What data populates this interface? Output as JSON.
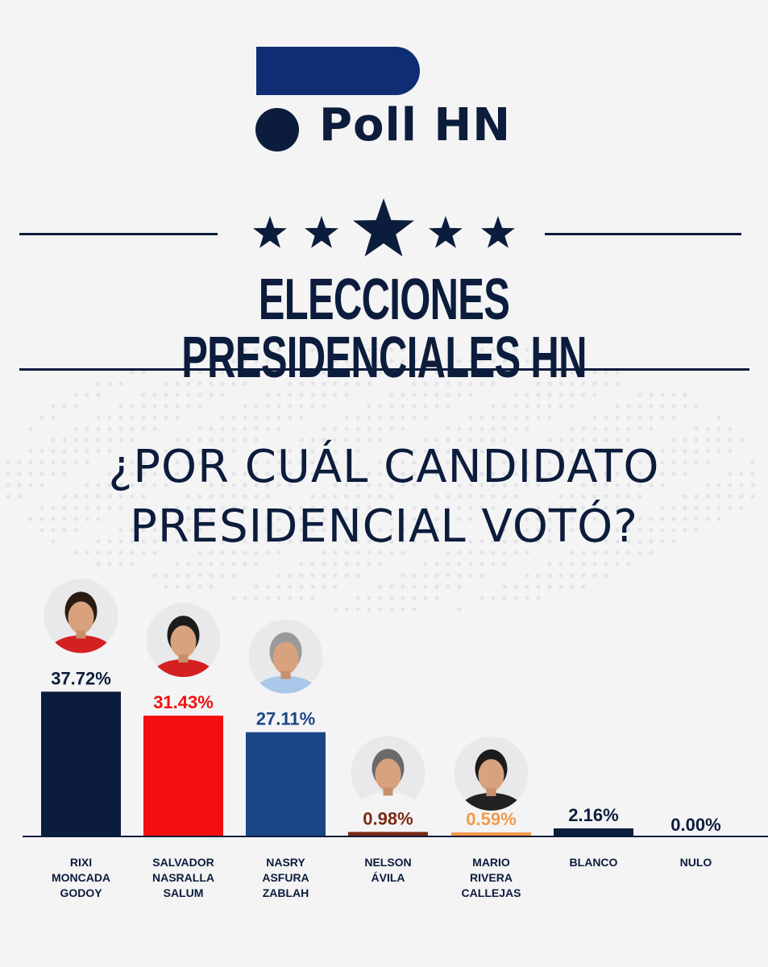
{
  "brand": {
    "name": "Poll HN",
    "primary": "#0c1c3c",
    "logo_blue": "#0f2d72"
  },
  "title": "ELECCIONES PRESIDENCIALES HN",
  "question": {
    "line1": "¿POR CUÁL CANDIDATO",
    "line2": "PRESIDENCIAL VOTÓ?"
  },
  "chart_data": {
    "type": "bar",
    "categories": [
      [
        "RIXI",
        "MONCADA",
        "GODOY"
      ],
      [
        "SALVADOR",
        "NASRALLA",
        "SALUM"
      ],
      [
        "NASRY",
        "ASFURA",
        "ZABLAH"
      ],
      [
        "NELSON",
        "ÁVILA"
      ],
      [
        "MARIO",
        "RIVERA",
        "CALLEJAS"
      ],
      [
        "BLANCO"
      ],
      [
        "NULO"
      ]
    ],
    "values": [
      37.72,
      31.43,
      27.11,
      0.98,
      0.59,
      2.16,
      0.0
    ],
    "labels": [
      "37.72%",
      "31.43%",
      "27.11%",
      "0.98%",
      "0.59%",
      "2.16%",
      "0.00%"
    ],
    "colors": [
      "#0c1c3c",
      "#f30f0f",
      "#1b4685",
      "#7b2a14",
      "#f29a4a",
      "#0c1c3c",
      "#0c1c3c"
    ],
    "label_colors": [
      "#0c1c3c",
      "#f30f0f",
      "#1b4685",
      "#7b2a14",
      "#f29a4a",
      "#0c1c3c",
      "#0c1c3c"
    ],
    "photos": [
      true,
      true,
      true,
      true,
      true,
      false,
      false
    ],
    "ylim": [
      0,
      38
    ]
  }
}
